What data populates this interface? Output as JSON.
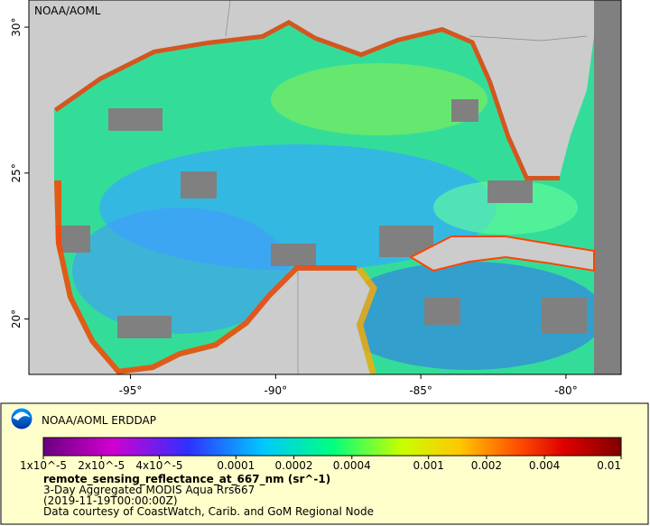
{
  "map": {
    "corner_label": "NOAA/AOML",
    "xlim": [
      -98.5,
      -78.1
    ],
    "ylim": [
      18.1,
      30.93
    ],
    "xticks": [
      {
        "value": -95,
        "label": "-95°"
      },
      {
        "value": -90,
        "label": "-90°"
      },
      {
        "value": -85,
        "label": "-85°"
      },
      {
        "value": -80,
        "label": "-80°"
      }
    ],
    "yticks": [
      {
        "value": 30,
        "label": "30°"
      },
      {
        "value": 25,
        "label": "25°"
      },
      {
        "value": 20,
        "label": "20°"
      }
    ]
  },
  "legend": {
    "title": "NOAA/AOML ERDDAP",
    "colorbar": {
      "scale": "log",
      "clim": [
        1e-05,
        0.01
      ],
      "ticks": [
        {
          "value": 1e-05,
          "label": "1x10^-5"
        },
        {
          "value": 2e-05,
          "label": "2x10^-5"
        },
        {
          "value": 4e-05,
          "label": "4x10^-5"
        },
        0.0001,
        0.0002,
        0.0004,
        0.001,
        0.002,
        0.004,
        0.01
      ]
    },
    "variable": "remote_sensing_reflectance_at_667_nm (sr^-1)",
    "lines": [
      "3-Day Aggregated MODIS Aqua Rrs667",
      "(2019-11-19T00:00:00Z)",
      "Data courtesy of CoastWatch, Carib. and GoM Regional Node"
    ]
  }
}
